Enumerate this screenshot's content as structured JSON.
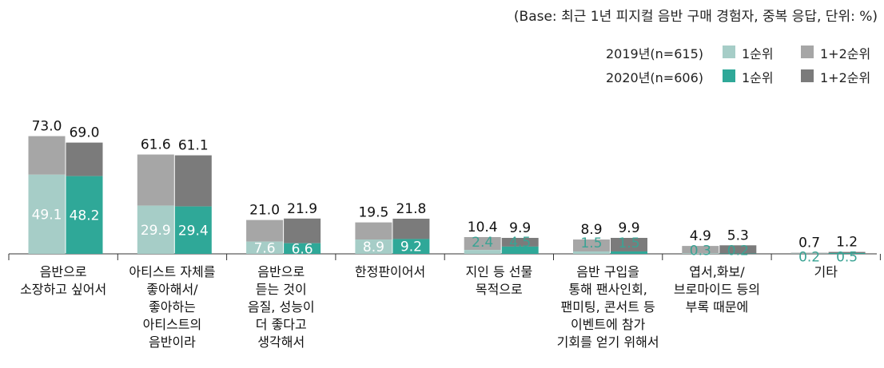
{
  "note": "(Base: 최근 1년 피지컬 음반 구매 경험자, 중복 응답, 단위: %)",
  "legend": {
    "row2019": {
      "year": "2019년(n=615)",
      "first": "1순위",
      "both": "1+2순위"
    },
    "row2020": {
      "year": "2020년(n=606)",
      "first": "1순위",
      "both": "1+2순위"
    }
  },
  "colors": {
    "first_2019": "#a6cdc7",
    "both_2019": "#a6a6a6",
    "first_2020": "#2fa898",
    "both_2020": "#7b7b7b",
    "label_first_outside": "#3aa394"
  },
  "chart_data": {
    "type": "bar",
    "unit": "%",
    "ylim": [
      0,
      80
    ],
    "grid": false,
    "categories": [
      [
        "음반으로",
        "소장하고 싶어서"
      ],
      [
        "아티스트 자체를",
        "좋아해서/",
        "좋아하는",
        "아티스트의",
        "음반이라"
      ],
      [
        "음반으로",
        "듣는 것이",
        "음질, 성능이",
        "더 좋다고",
        "생각해서"
      ],
      [
        "한정판이어서"
      ],
      [
        "지인 등 선물",
        "목적으로"
      ],
      [
        "음반 구입을",
        "통해 팬사인회,",
        "팬미팅, 콘서트 등",
        "이벤트에 참가",
        "기회를 얻기 위해서"
      ],
      [
        "엽서,화보/",
        "브로마이드 등의",
        "부록 때문에"
      ],
      [
        "기타"
      ]
    ],
    "series": [
      {
        "name": "2019년(n=615) 1+2순위",
        "values": [
          73.0,
          61.6,
          21.0,
          19.5,
          10.4,
          8.9,
          4.9,
          0.7
        ]
      },
      {
        "name": "2019년(n=615) 1순위",
        "values": [
          49.1,
          29.9,
          7.6,
          8.9,
          2.4,
          1.5,
          0.3,
          0.2
        ]
      },
      {
        "name": "2020년(n=606) 1+2순위",
        "values": [
          69.0,
          61.1,
          21.9,
          21.8,
          9.9,
          9.9,
          5.3,
          1.2
        ]
      },
      {
        "name": "2020년(n=606) 1순위",
        "values": [
          48.2,
          29.4,
          6.6,
          9.2,
          4.5,
          1.5,
          0.2,
          0.5
        ]
      }
    ]
  }
}
